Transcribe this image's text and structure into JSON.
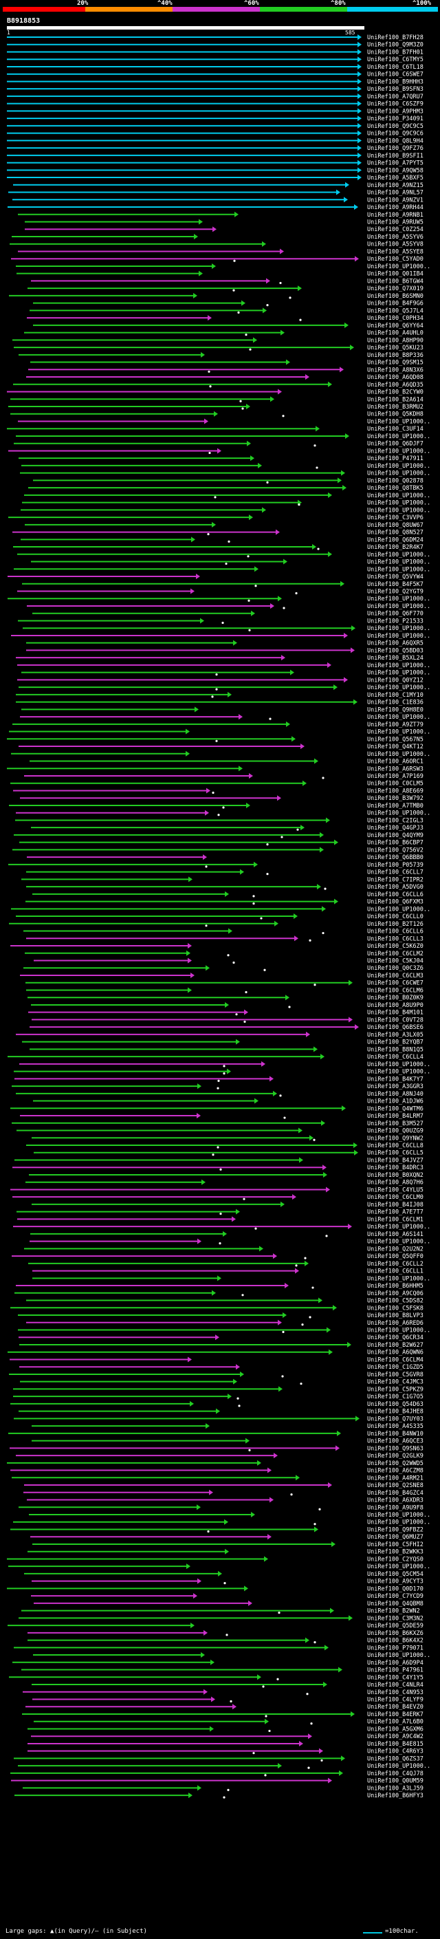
{
  "legend": {
    "labels": [
      "20%",
      "^40%",
      "^60%",
      "^80%",
      "^100%"
    ],
    "colors": [
      "#ff0000",
      "#ff8c00",
      "#cc33cc",
      "#22cc22",
      "#00ccee"
    ]
  },
  "query": {
    "id": "B8918853",
    "start": "1",
    "end": "585"
  },
  "hits": [
    "UniRef100_B7FH28",
    "UniRef100_Q9M3Z0",
    "UniRef100_B7FH01",
    "UniRef100_C6TMY5",
    "UniRef100_C6TL18",
    "UniRef100_C6SWE7",
    "UniRef100_B9HHH3",
    "UniRef100_B9SFN3",
    "UniRef100_A7QRU7",
    "UniRef100_C6SZF9",
    "UniRef100_A9PHM3",
    "UniRef100_P34091",
    "UniRef100_Q9C9C5",
    "UniRef100_Q9C9C6",
    "UniRef100_Q8L9H4",
    "UniRef100_Q9FZ76",
    "UniRef100_B9SFI1",
    "UniRef100_A7PYT5",
    "UniRef100_A9QW58",
    "UniRef100_A5BXF5",
    "UniRef100_A9NZ15",
    "UniRef100_A9NL57",
    "UniRef100_A9NZV1",
    "UniRef100_A9RH44",
    "UniRef100_A9RNB1",
    "UniRef100_A9RUW5",
    "UniRef100_C0Z254",
    "UniRef100_A5SYV6",
    "UniRef100_A5SYV8",
    "UniRef100_A5SYE8",
    "UniRef100_C5YAD0",
    "UniRef100_UP1000..",
    "UniRef100_Q01IB4",
    "UniRef100_B6TGW4",
    "UniRef100_Q7X019",
    "UniRef100_B6SMN0",
    "UniRef100_B4F9G6",
    "UniRef100_Q5J7L4",
    "UniRef100_C0PH34",
    "UniRef100_Q6YY64",
    "UniRef100_A4UHL0",
    "UniRef100_A8HP90",
    "UniRef100_Q5KU23",
    "UniRef100_B8P336",
    "UniRef100_Q9SM15",
    "UniRef100_A8N3X6",
    "UniRef100_A6QD08",
    "UniRef100_A6QD35",
    "UniRef100_B2CYW0",
    "UniRef100_B2A614",
    "UniRef100_B3RMU2",
    "UniRef100_Q5KDH8",
    "UniRef100_UP1000..",
    "UniRef100_C3UF14",
    "UniRef100_UP1000..",
    "UniRef100_Q6DJF7",
    "UniRef100_UP1000..",
    "UniRef100_P47911",
    "UniRef100_UP1000..",
    "UniRef100_UP1000..",
    "UniRef100_Q02878",
    "UniRef100_Q8TBK5",
    "UniRef100_UP1000..",
    "UniRef100_UP1000..",
    "UniRef100_UP1000..",
    "UniRef100_C3VVP6",
    "UniRef100_Q8UW67",
    "UniRef100_Q8N527",
    "UniRef100_Q6DM24",
    "UniRef100_B2R4K7",
    "UniRef100_UP1000..",
    "UniRef100_UP1000..",
    "UniRef100_UP1000..",
    "UniRef100_Q5VYW4",
    "UniRef100_B4F5K7",
    "UniRef100_Q2YGT9",
    "UniRef100_UP1000..",
    "UniRef100_UP1000..",
    "UniRef100_Q6F770",
    "UniRef100_P21533",
    "UniRef100_UP1000..",
    "UniRef100_UP1000..",
    "UniRef100_A6QXR5",
    "UniRef100_Q5BD03",
    "UniRef100_B5XL24",
    "UniRef100_UP1000..",
    "UniRef100_UP1000..",
    "UniRef100_Q0YZ12",
    "UniRef100_UP1000..",
    "UniRef100_C1MY10",
    "UniRef100_C1E836",
    "UniRef100_Q9H8E0",
    "UniRef100_UP1000..",
    "UniRef100_A9ZT79",
    "UniRef100_UP1000..",
    "UniRef100_Q567N5",
    "UniRef100_Q4KT12",
    "UniRef100_UP1000..",
    "UniRef100_A6ORC1",
    "UniRef100_A6RSW3",
    "UniRef100_A7P169",
    "UniRef100_C0CLM5",
    "UniRef100_A8E669",
    "UniRef100_B3W792",
    "UniRef100_A7TMB0",
    "UniRef100_UP1000..",
    "UniRef100_C2IGL3",
    "UniRef100_Q4GPJ3",
    "UniRef100_Q4QYM9",
    "UniRef100_B6CBP7",
    "UniRef100_Q756V2",
    "UniRef100_Q6BBB0",
    "UniRef100_P05739",
    "UniRef100_C6CLL7",
    "UniRef100_C7IPR2",
    "UniRef100_A5DVG0",
    "UniRef100_C6CLL6",
    "UniRef100_Q6FXM3",
    "UniRef100_UP1000..",
    "UniRef100_C6CLL0",
    "UniRef100_B2T126",
    "UniRef100_C6CLL6",
    "UniRef100_C6CLL3",
    "UniRef100_C5K6Z0",
    "UniRef100_C6CLM2",
    "UniRef100_C5KJ04",
    "UniRef100_Q0C3Z6",
    "UniRef100_C6CLM3",
    "UniRef100_C6CWE7",
    "UniRef100_C6CLM6",
    "UniRef100_B0Z0K9",
    "UniRef100_A8U9P0",
    "UniRef100_B4M101",
    "UniRef100_C0VT28",
    "UniRef100_Q6BSE6",
    "UniRef100_A3LX05",
    "UniRef100_B2YQB7",
    "UniRef100_B8N1Q5",
    "UniRef100_C6CLL4",
    "UniRef100_UP1000..",
    "UniRef100_UP1000..",
    "UniRef100_B4K7Y7",
    "UniRef100_A3GGR3",
    "UniRef100_A8NJ40",
    "UniRef100_A1DJW6",
    "UniRef100_Q4WTM6",
    "UniRef100_B4LRM7",
    "UniRef100_B3M527",
    "UniRef100_Q0UZG9",
    "UniRef100_Q9YNW2",
    "UniRef100_C6CLL8",
    "UniRef100_C6CLL5",
    "UniRef100_B4JVZ7",
    "UniRef100_B4DRC3",
    "UniRef100_B0XQN2",
    "UniRef100_A8Q7H6",
    "UniRef100_C4YLU5",
    "UniRef100_C6CLM0",
    "UniRef100_B4IJ08",
    "UniRef100_A7E7T7",
    "UniRef100_C6CLM1",
    "UniRef100_UP1000..",
    "UniRef100_A6S141",
    "UniRef100_UP1000..",
    "UniRef100_Q2U2N2",
    "UniRef100_Q5QFF0",
    "UniRef100_C6CLL2",
    "UniRef100_C6CLL1",
    "UniRef100_UP1000..",
    "UniRef100_B6HHM5",
    "UniRef100_A9CQ06",
    "UniRef100_C5DS82",
    "UniRef100_C5FSK8",
    "UniRef100_B8LVP3",
    "UniRef100_A6RED6",
    "UniRef100_UP1000..",
    "UniRef100_Q6CR34",
    "UniRef100_B2W627",
    "UniRef100_A6QWN6",
    "UniRef100_C6CLM4",
    "UniRef100_C1GZD5",
    "UniRef100_C5GVR8",
    "UniRef100_C4JMC3",
    "UniRef100_C5PKZ9",
    "UniRef100_C1G7O5",
    "UniRef100_Q54D63",
    "UniRef100_B4JHE8",
    "UniRef100_Q7UY03",
    "UniRef100_A4S335",
    "UniRef100_B4NW10",
    "UniRef100_A6QCE3",
    "UniRef100_Q9SN63",
    "UniRef100_Q2GLK9",
    "UniRef100_Q2WWD5",
    "UniRef100_A6CZM8",
    "UniRef100_A4RM21",
    "UniRef100_Q2SNE8",
    "UniRef100_B4GZC4",
    "UniRef100_A6XDR3",
    "UniRef100_A9U9F8",
    "UniRef100_UP1000..",
    "UniRef100_UP1000..",
    "UniRef100_Q9FBZ2",
    "UniRef100_Q6MUZ7",
    "UniRef100_C5FHI2",
    "UniRef100_B2WKK3",
    "UniRef100_C2YQS0",
    "UniRef100_UP1000..",
    "UniRef100_Q5CM54",
    "UniRef100_A9CYT3",
    "UniRef100_Q0D170",
    "UniRef100_C7YCD9",
    "UniRef100_Q4QBM8",
    "UniRef100_B2WN2",
    "UniRef100_C3M3N2",
    "UniRef100_Q5DE59",
    "UniRef100_B6KXZ6",
    "UniRef100_B6K4X2",
    "UniRef100_P79071",
    "UniRef100_UP1000..",
    "UniRef100_A6D9P4",
    "UniRef100_P47961",
    "UniRef100_C4Y1Y5",
    "UniRef100_C4NLR4",
    "UniRef100_C4N953",
    "UniRef100_C4LYF9",
    "UniRef100_B4EVZ0",
    "UniRef100_B4ERK7",
    "UniRef100_A7L6B0",
    "UniRef100_A5GXM6",
    "UniRef100_A9C4W2",
    "UniRef100_B4E815",
    "UniRef100_C4R6Y3",
    "UniRef100_Q6ZS37",
    "UniRef100_UP1000..",
    "UniRef100_C4QJ78",
    "UniRef100_Q0UM59",
    "UniRef100_A3LJ59",
    "UniRef100_B6HFY3"
  ],
  "footer": {
    "left_text": "Large gaps: ▲(in Query)/— (in Subject)",
    "right_text": "=100char."
  }
}
